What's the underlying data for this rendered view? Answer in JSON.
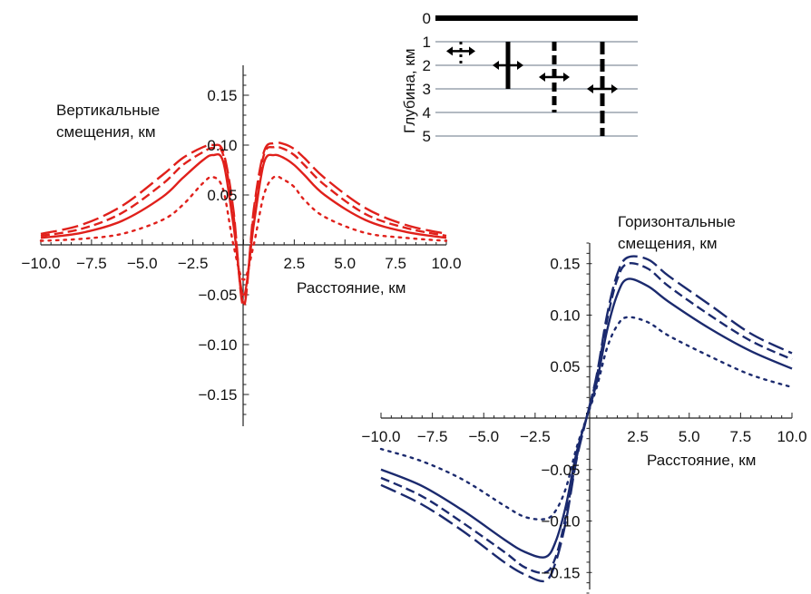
{
  "chart_data": [
    {
      "type": "line",
      "ylabel_lines": [
        "Вертикальные",
        "смещения, км"
      ],
      "xlabel": "Расстояние, км",
      "xlim": [
        -10,
        10
      ],
      "ylim": [
        -0.18,
        0.18
      ],
      "x_ticks": [
        "−10.0",
        "−7.5",
        "−5.0",
        "−2.5",
        "2.5",
        "5.0",
        "7.5",
        "10.0"
      ],
      "y_ticks": [
        "0.15",
        "0.10",
        "0.05",
        "−0.05",
        "−0.10",
        "−0.15"
      ],
      "color": "#e0201b",
      "series": [
        {
          "style": "dotted",
          "x": [
            -10,
            -8,
            -6,
            -4,
            -3,
            -2,
            -1.5,
            -1,
            -0.5,
            0,
            0.5,
            1,
            1.5,
            2,
            2.5,
            3,
            4,
            6,
            8,
            10
          ],
          "y": [
            0.004,
            0.006,
            0.011,
            0.025,
            0.04,
            0.062,
            0.068,
            0.055,
            0.0,
            -0.035,
            0.0,
            0.05,
            0.068,
            0.065,
            0.058,
            0.045,
            0.028,
            0.012,
            0.007,
            0.004
          ]
        },
        {
          "style": "solid",
          "x": [
            -10,
            -8,
            -6,
            -4,
            -3,
            -2,
            -1.5,
            -1,
            -0.5,
            0,
            0.5,
            1,
            1.5,
            2,
            2.5,
            3,
            4,
            6,
            8,
            10
          ],
          "y": [
            0.007,
            0.012,
            0.024,
            0.048,
            0.067,
            0.085,
            0.09,
            0.083,
            0.02,
            -0.05,
            0.02,
            0.082,
            0.09,
            0.087,
            0.08,
            0.07,
            0.05,
            0.025,
            0.013,
            0.007
          ]
        },
        {
          "style": "dashed",
          "x": [
            -10,
            -8,
            -6,
            -4,
            -3,
            -2,
            -1.5,
            -1,
            -0.5,
            0,
            0.5,
            1,
            1.5,
            2,
            2.5,
            3,
            4,
            6,
            8,
            10
          ],
          "y": [
            0.009,
            0.016,
            0.032,
            0.061,
            0.08,
            0.093,
            0.097,
            0.09,
            0.03,
            -0.058,
            0.03,
            0.09,
            0.098,
            0.096,
            0.09,
            0.08,
            0.06,
            0.031,
            0.017,
            0.009
          ]
        },
        {
          "style": "longdash",
          "x": [
            -10,
            -8,
            -6,
            -4,
            -3,
            -2,
            -1.5,
            -1,
            -0.5,
            0,
            0.5,
            1,
            1.5,
            2,
            2.5,
            3,
            4,
            6,
            8,
            10
          ],
          "y": [
            0.011,
            0.02,
            0.039,
            0.07,
            0.087,
            0.098,
            0.1,
            0.093,
            0.035,
            -0.062,
            0.035,
            0.093,
            0.102,
            0.101,
            0.096,
            0.087,
            0.067,
            0.037,
            0.02,
            0.011
          ]
        }
      ]
    },
    {
      "type": "line",
      "ylabel_lines": [
        "Горизонтальные",
        "смещения, км"
      ],
      "xlabel": "Расстояние, км",
      "xlim": [
        -10,
        10
      ],
      "ylim": [
        -0.17,
        0.17
      ],
      "x_ticks": [
        "−10.0",
        "−7.5",
        "−5.0",
        "−2.5",
        "2.5",
        "5.0",
        "7.5",
        "10.0"
      ],
      "y_ticks": [
        "0.15",
        "0.10",
        "0.05",
        "−0.05",
        "−0.10",
        "−0.15"
      ],
      "color": "#1b2a6e",
      "series": [
        {
          "style": "dotted",
          "x": [
            -10,
            -8,
            -6,
            -4,
            -3,
            -2,
            -1.5,
            -1,
            -0.5,
            0,
            0.5,
            1,
            1.5,
            2,
            3,
            4,
            6,
            8,
            10
          ],
          "y": [
            -0.03,
            -0.042,
            -0.06,
            -0.085,
            -0.096,
            -0.098,
            -0.09,
            -0.068,
            -0.03,
            0.0,
            0.03,
            0.068,
            0.09,
            0.098,
            0.093,
            0.08,
            0.06,
            0.042,
            0.03
          ]
        },
        {
          "style": "solid",
          "x": [
            -10,
            -8,
            -6,
            -4,
            -3,
            -2,
            -1.5,
            -1,
            -0.5,
            0,
            0.5,
            1,
            1.5,
            2,
            3,
            4,
            6,
            8,
            10
          ],
          "y": [
            -0.05,
            -0.066,
            -0.09,
            -0.118,
            -0.13,
            -0.135,
            -0.12,
            -0.085,
            -0.035,
            0.0,
            0.035,
            0.085,
            0.12,
            0.135,
            0.128,
            0.113,
            0.087,
            0.065,
            0.048
          ]
        },
        {
          "style": "dashed",
          "x": [
            -10,
            -8,
            -6,
            -4,
            -3,
            -2,
            -1.5,
            -1,
            -0.5,
            0,
            0.5,
            1,
            1.5,
            2,
            3,
            4,
            6,
            8,
            10
          ],
          "y": [
            -0.058,
            -0.076,
            -0.102,
            -0.13,
            -0.145,
            -0.15,
            -0.135,
            -0.095,
            -0.04,
            0.0,
            0.04,
            0.095,
            0.135,
            0.15,
            0.145,
            0.128,
            0.1,
            0.075,
            0.057
          ]
        },
        {
          "style": "longdash",
          "x": [
            -10,
            -8,
            -6,
            -4,
            -3,
            -2,
            -1.5,
            -1,
            -0.5,
            0,
            0.5,
            1,
            1.5,
            2,
            3,
            4,
            6,
            8,
            10
          ],
          "y": [
            -0.065,
            -0.084,
            -0.11,
            -0.14,
            -0.152,
            -0.158,
            -0.14,
            -0.1,
            -0.042,
            0.0,
            0.042,
            0.1,
            0.14,
            0.156,
            0.154,
            0.138,
            0.11,
            0.082,
            0.063
          ]
        }
      ]
    },
    {
      "type": "diagram",
      "ylabel": "Глубина, км",
      "depth_ticks": [
        "0",
        "1",
        "2",
        "3",
        "4",
        "5"
      ],
      "faults": [
        {
          "style": "dotted",
          "top": 1.0,
          "bottom": 2.0,
          "center": 1.4
        },
        {
          "style": "solid",
          "top": 1.0,
          "bottom": 3.0,
          "center": 2.0
        },
        {
          "style": "dashed",
          "top": 1.0,
          "bottom": 4.0,
          "center": 2.5
        },
        {
          "style": "longdash",
          "top": 1.0,
          "bottom": 5.0,
          "center": 3.0
        }
      ]
    }
  ]
}
